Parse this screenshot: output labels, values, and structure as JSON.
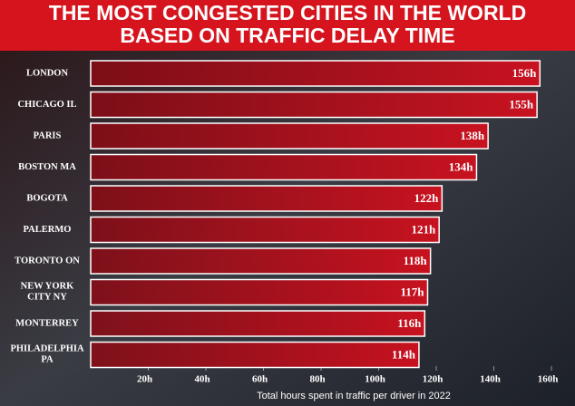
{
  "chart_data": {
    "type": "bar",
    "orientation": "horizontal",
    "title": [
      "THE MOST CONGESTED CITIES IN THE WORLD",
      "BASED ON TRAFFIC DELAY TIME"
    ],
    "categories": [
      "LONDON",
      "CHICAGO IL",
      "PARIS",
      "BOSTON MA",
      "BOGOTA",
      "PALERMO",
      "TORONTO ON",
      "NEW YORK\nCITY NY",
      "MONTERREY",
      "PHILADELPHIA\nPA"
    ],
    "values": [
      156,
      155,
      138,
      134,
      122,
      121,
      118,
      117,
      116,
      114
    ],
    "value_labels": [
      "156h",
      "155h",
      "138h",
      "134h",
      "122h",
      "121h",
      "118h",
      "117h",
      "116h",
      "114h"
    ],
    "color": "#c8101e",
    "xlim": [
      0,
      160
    ],
    "xticks": [
      {
        "value": 20,
        "label": "20h"
      },
      {
        "value": 40,
        "label": "40h"
      },
      {
        "value": 60,
        "label": "60h"
      },
      {
        "value": 80,
        "label": "80h"
      },
      {
        "value": 100,
        "label": "100h"
      },
      {
        "value": 120,
        "label": "120h"
      },
      {
        "value": 140,
        "label": "140h"
      },
      {
        "value": 160,
        "label": "160h"
      }
    ],
    "x_label": "Total hours spent in traffic per driver in 2022"
  }
}
